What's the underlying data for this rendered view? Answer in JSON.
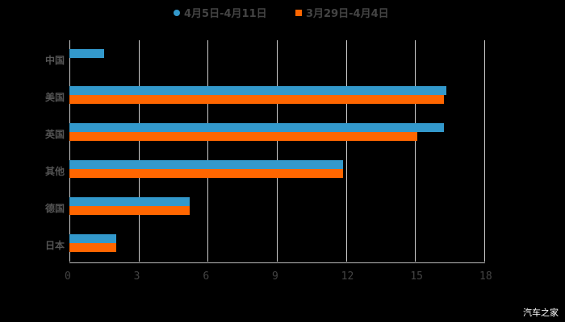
{
  "chart_data": {
    "type": "bar",
    "orientation": "horizontal",
    "title": "",
    "categories": [
      "中国",
      "美国",
      "英国",
      "其他",
      "德国",
      "日本"
    ],
    "series": [
      {
        "name": "4月5日-4月11日",
        "color": "#3399CC",
        "values": [
          1.5,
          16.35,
          16.25,
          11.87,
          5.22,
          2.03
        ]
      },
      {
        "name": "3月29日-4月4日",
        "color": "#FF6600",
        "values": [
          null,
          16.25,
          15.1,
          11.87,
          5.22,
          2.03
        ]
      }
    ],
    "xlim": [
      0,
      18
    ],
    "xticks": [
      "0",
      "3",
      "6",
      "9",
      "12",
      "15",
      "18"
    ],
    "grid": true,
    "legend_position": "top"
  },
  "legend": {
    "s1": "4月5日-4月11日",
    "s2": "3月29日-4月4日"
  },
  "watermark": "汽车之家"
}
